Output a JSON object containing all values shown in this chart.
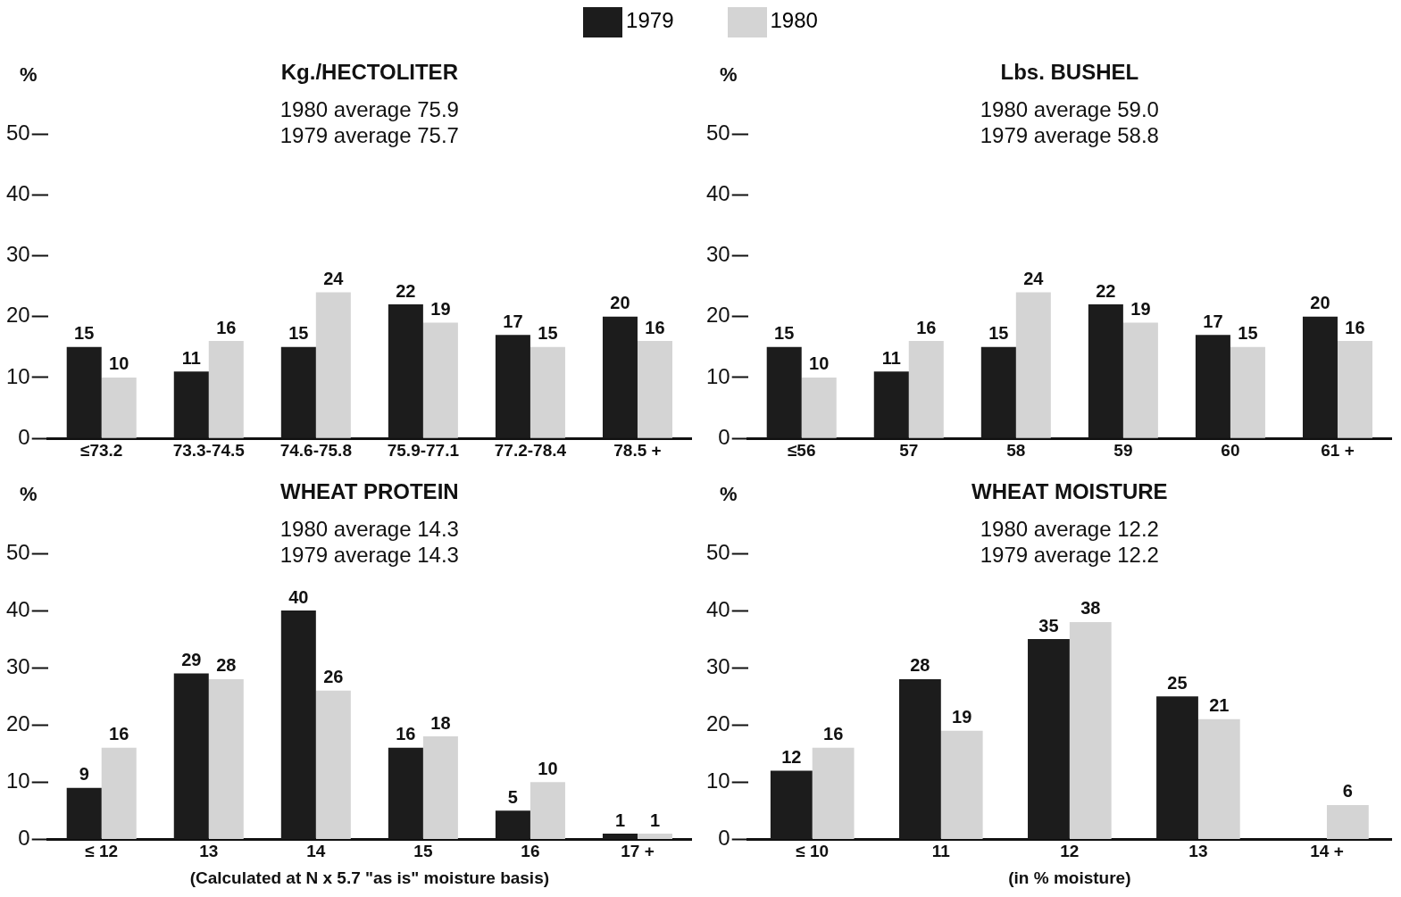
{
  "chart_data": [
    {
      "type": "bar",
      "title": "Kg./HECTOLITER",
      "ylabel": "%",
      "annotations": [
        "1980 average 75.9",
        "1979 average 75.7"
      ],
      "categories": [
        "≤73.2",
        "73.3-74.5",
        "74.6-75.8",
        "75.9-77.1",
        "77.2-78.4",
        "78.5 +"
      ],
      "series": [
        {
          "name": "1979",
          "color": "#1c1c1c",
          "values": [
            15,
            11,
            15,
            22,
            17,
            20
          ]
        },
        {
          "name": "1980",
          "color": "#d4d4d4",
          "values": [
            10,
            16,
            24,
            19,
            15,
            16
          ]
        }
      ],
      "ylim": [
        0,
        50
      ],
      "yticks": [
        0,
        10,
        20,
        30,
        40,
        50
      ],
      "grid": false,
      "legend": "top",
      "data_labels": true
    },
    {
      "type": "bar",
      "title": "Lbs. BUSHEL",
      "ylabel": "%",
      "annotations": [
        "1980 average 59.0",
        "1979 average 58.8"
      ],
      "categories": [
        "≤56",
        "57",
        "58",
        "59",
        "60",
        "61 +"
      ],
      "series": [
        {
          "color": "#1c1c1c",
          "values": [
            15,
            11,
            15,
            22,
            17,
            20
          ]
        },
        {
          "color": "#d4d4d4",
          "values": [
            10,
            16,
            24,
            19,
            15,
            16
          ]
        }
      ],
      "ylim": [
        0,
        50
      ],
      "yticks": [
        0,
        10,
        20,
        30,
        40,
        50
      ],
      "grid": false,
      "data_labels": true
    },
    {
      "type": "bar",
      "title": "WHEAT PROTEIN",
      "ylabel": "%",
      "xlabel": "(Calculated at N x 5.7 \"as is\" moisture basis)",
      "annotations": [
        "1980 average 14.3",
        "1979 average 14.3"
      ],
      "categories": [
        "≤ 12",
        "13",
        "14",
        "15",
        "16",
        "17 +"
      ],
      "series": [
        {
          "color": "#1c1c1c",
          "values": [
            9,
            29,
            40,
            16,
            5,
            1
          ]
        },
        {
          "color": "#d4d4d4",
          "values": [
            16,
            28,
            26,
            18,
            10,
            1
          ]
        }
      ],
      "ylim": [
        0,
        50
      ],
      "yticks": [
        0,
        10,
        20,
        30,
        40,
        50
      ],
      "grid": false,
      "data_labels": true
    },
    {
      "type": "bar",
      "title": "WHEAT MOISTURE",
      "ylabel": "%",
      "xlabel": "(in % moisture)",
      "annotations": [
        "1980 average 12.2",
        "1979 average 12.2"
      ],
      "categories": [
        "≤ 10",
        "11",
        "12",
        "13",
        "14 +"
      ],
      "series": [
        {
          "color": "#1c1c1c",
          "values": [
            12,
            28,
            35,
            25,
            null
          ]
        },
        {
          "color": "#d4d4d4",
          "values": [
            16,
            19,
            38,
            21,
            6
          ]
        }
      ],
      "ylim": [
        0,
        50
      ],
      "yticks": [
        0,
        10,
        20,
        30,
        40,
        50
      ],
      "grid": false,
      "data_labels": true
    }
  ]
}
